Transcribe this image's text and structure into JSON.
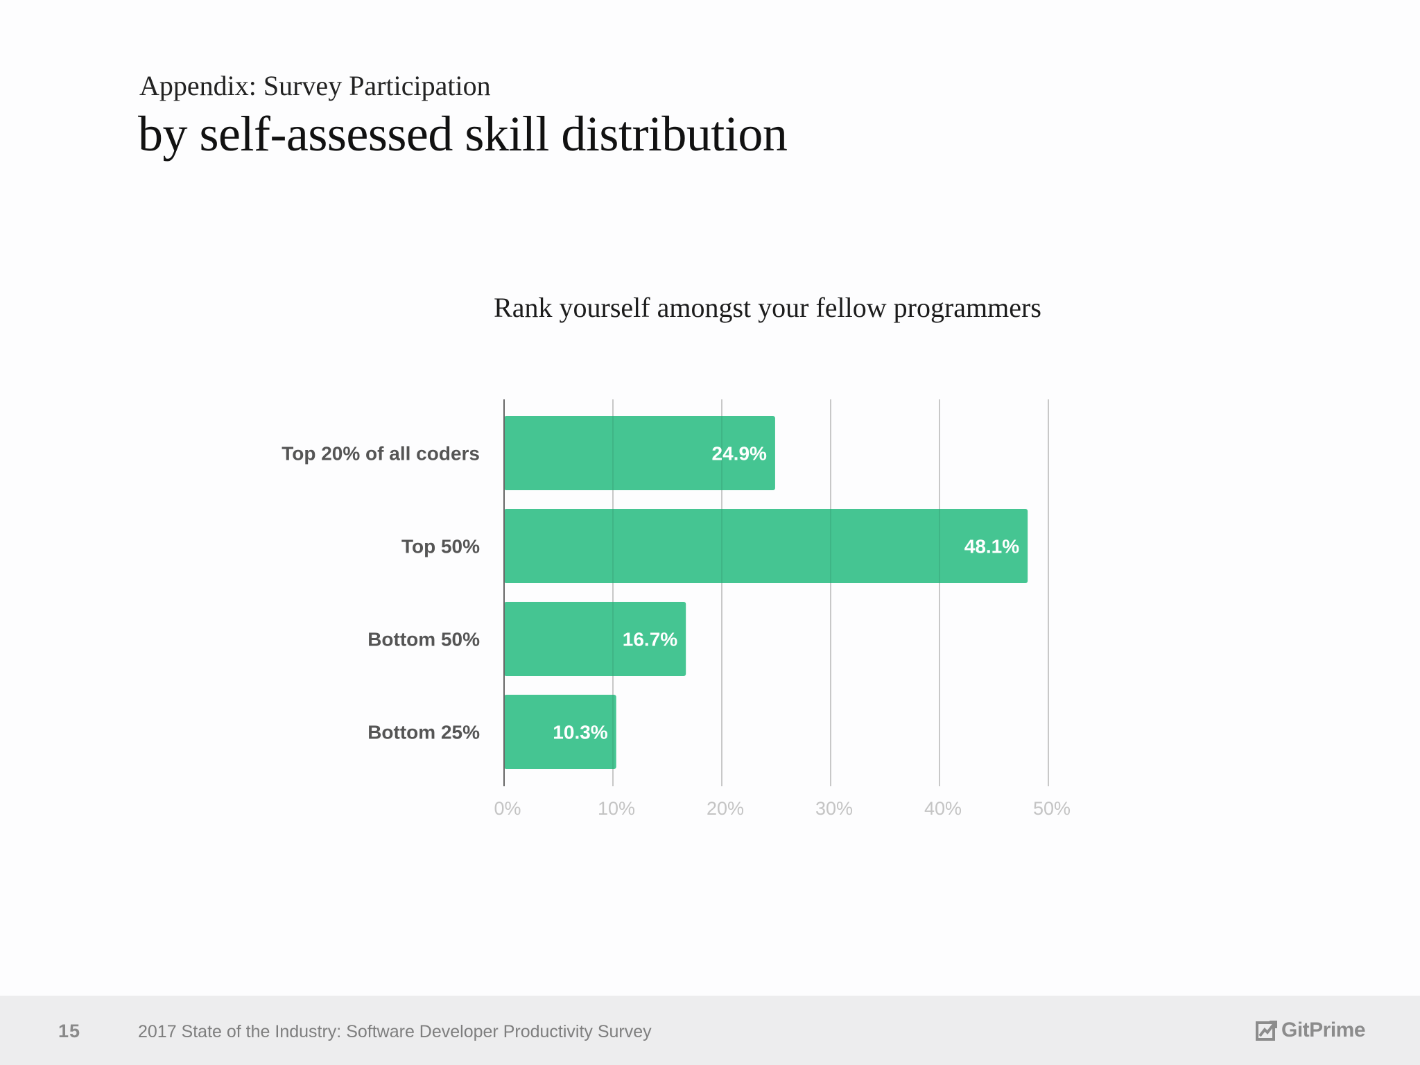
{
  "header": {
    "supertitle": "Appendix: Survey Participation",
    "title": "by self-assessed skill distribution"
  },
  "chart_data": {
    "type": "bar",
    "orientation": "horizontal",
    "title": "Rank yourself amongst your fellow programmers",
    "categories": [
      "Top 20% of all coders",
      "Top 50%",
      "Bottom 50%",
      "Bottom 25%"
    ],
    "values": [
      24.9,
      48.1,
      16.7,
      10.3
    ],
    "value_labels": [
      "24.9%",
      "48.1%",
      "16.7%",
      "10.3%"
    ],
    "xlim": [
      0,
      50
    ],
    "x_ticks": [
      0,
      10,
      20,
      30,
      40,
      50
    ],
    "x_tick_labels": [
      "0%",
      "10%",
      "20%",
      "30%",
      "40%",
      "50%"
    ],
    "grid": "vertical",
    "bar_color": "#45c592",
    "xlabel": "",
    "ylabel": ""
  },
  "footer": {
    "page_number": "15",
    "text": "2017 State of the Industry: Software Developer Productivity Survey",
    "brand": "GitPrime",
    "brand_icon": "gitprime-logo-icon"
  }
}
